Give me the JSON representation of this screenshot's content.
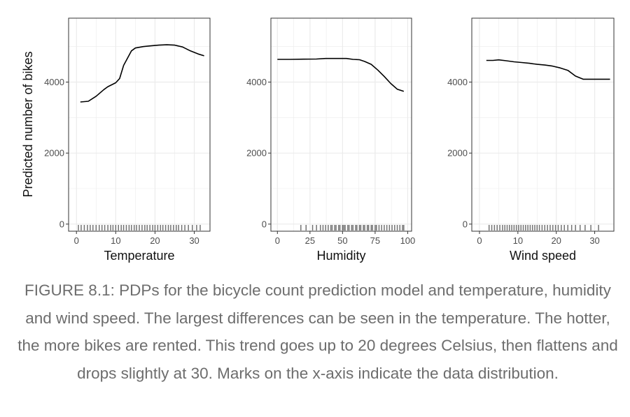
{
  "figure": {
    "ylabel": "Predicted number of bikes",
    "caption": "FIGURE 8.1: PDPs for the bicycle count prediction model and temperature, humidity and wind speed. The largest differences can be seen in the temperature. The hotter, the more bikes are rented. This trend goes up to 20 degrees Celsius, then flattens and drops slightly at 30. Marks on the x-axis indicate the data distribution.",
    "colors": {
      "line": "#000000",
      "grid": "#ebebeb",
      "panel_border": "#333333",
      "caption": "#6d6d6d"
    }
  },
  "chart_data": [
    {
      "type": "line",
      "xlabel": "Temperature",
      "ylabel": "Predicted number of bikes",
      "xlim": [
        -2,
        34
      ],
      "ylim": [
        -200,
        5800
      ],
      "xticks": [
        0,
        10,
        20,
        30
      ],
      "yticks": [
        0,
        2000,
        4000
      ],
      "grid": true,
      "series": [
        {
          "x": [
            1,
            3,
            5,
            7,
            8,
            10,
            11,
            12,
            14,
            15,
            17,
            19,
            21,
            23,
            25,
            27,
            29,
            31,
            32.5
          ],
          "y": [
            3440,
            3460,
            3600,
            3790,
            3870,
            3980,
            4100,
            4470,
            4880,
            4960,
            5000,
            5020,
            5040,
            5050,
            5040,
            4990,
            4880,
            4790,
            4740
          ]
        }
      ],
      "rug": [
        0.5,
        1.2,
        2,
        2.8,
        3.5,
        4.2,
        5,
        5.8,
        6.5,
        7.2,
        8,
        8.7,
        9.3,
        10,
        10.7,
        11.4,
        12,
        12.7,
        13.4,
        14,
        14.7,
        15.3,
        16,
        16.7,
        17.4,
        18,
        18.7,
        19.4,
        20,
        20.7,
        21.4,
        22,
        22.7,
        23.4,
        24,
        24.7,
        25.4,
        26,
        26.8,
        27.6,
        28.5,
        29.5,
        30.6,
        31.5
      ]
    },
    {
      "type": "line",
      "xlabel": "Humidity",
      "ylabel": "",
      "xlim": [
        -5,
        103
      ],
      "ylim": [
        -200,
        5800
      ],
      "xticks": [
        0,
        25,
        50,
        75,
        100
      ],
      "yticks": [
        0,
        2000,
        4000
      ],
      "grid": true,
      "series": [
        {
          "x": [
            0,
            10,
            20,
            30,
            37,
            45,
            53,
            58,
            63,
            67,
            72,
            77,
            82,
            87,
            92,
            97
          ],
          "y": [
            4640,
            4640,
            4645,
            4650,
            4665,
            4665,
            4665,
            4640,
            4630,
            4580,
            4500,
            4340,
            4160,
            3960,
            3800,
            3740
          ]
        }
      ],
      "rug": [
        18,
        22,
        27,
        30,
        33,
        35,
        37,
        39,
        41,
        42,
        44,
        45,
        47,
        48,
        50,
        51,
        52,
        54,
        55,
        57,
        58,
        60,
        61,
        63,
        64,
        66,
        67,
        69,
        70,
        72,
        73,
        75,
        76,
        78,
        80,
        82,
        84,
        86,
        88,
        90,
        92,
        94,
        96,
        97
      ]
    },
    {
      "type": "line",
      "xlabel": "Wind speed",
      "ylabel": "",
      "xlim": [
        -2,
        35
      ],
      "ylim": [
        -200,
        5800
      ],
      "xticks": [
        0,
        10,
        20,
        30
      ],
      "yticks": [
        0,
        2000,
        4000
      ],
      "grid": true,
      "series": [
        {
          "x": [
            1.8,
            3.5,
            5,
            7,
            9,
            11,
            13,
            15,
            17,
            19,
            21,
            23,
            25,
            27,
            29,
            31,
            34
          ],
          "y": [
            4610,
            4610,
            4625,
            4600,
            4570,
            4550,
            4530,
            4500,
            4480,
            4450,
            4400,
            4330,
            4170,
            4080,
            4080,
            4080,
            4080
          ]
        }
      ],
      "rug": [
        2.5,
        3.2,
        3.9,
        4.6,
        5.3,
        6,
        6.6,
        7.2,
        7.8,
        8.4,
        9,
        9.6,
        10.2,
        10.8,
        11.4,
        12,
        12.6,
        13.2,
        13.8,
        14.4,
        15,
        15.6,
        16.3,
        17,
        17.7,
        18.4,
        19.1,
        19.8,
        20.5,
        21.3,
        22.1,
        23,
        24,
        25,
        26.2,
        27.5,
        29,
        31
      ]
    }
  ]
}
